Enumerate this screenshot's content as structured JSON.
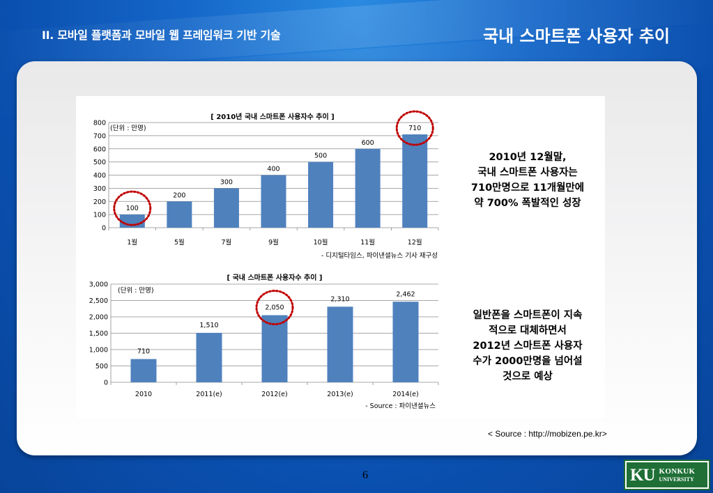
{
  "header": {
    "section_title": "II. 모바일 플랫폼과 모바일 웹 프레임워크 기반 기술",
    "slide_title": "국내 스마트폰 사용자 추이"
  },
  "chart_data": [
    {
      "type": "bar",
      "title": "[ 2010년 국내 스마트폰 사용자수 추이 ]",
      "unit_label": "(단위 : 만명)",
      "categories": [
        "1월",
        "5월",
        "7월",
        "9월",
        "10월",
        "11월",
        "12월"
      ],
      "values": [
        100,
        200,
        300,
        400,
        500,
        600,
        710
      ],
      "value_labels": [
        "100",
        "200",
        "300",
        "400",
        "500",
        "600",
        "710"
      ],
      "ylim": [
        0,
        800
      ],
      "yticks": [
        0,
        100,
        200,
        300,
        400,
        500,
        600,
        700,
        800
      ],
      "ytick_labels": [
        "0",
        "100",
        "200",
        "300",
        "400",
        "500",
        "600",
        "700",
        "800"
      ],
      "highlighted": [
        "1월",
        "12월"
      ],
      "source": "- 디지털타임스, 파이낸셜뉴스 기사 재구성",
      "grid": true,
      "color": "#4f81bd",
      "highlight_color": "#c00000"
    },
    {
      "type": "bar",
      "title": "[ 국내 스마트폰 사용자수 추이 ]",
      "unit_label": "(단위 : 만명)",
      "categories": [
        "2010",
        "2011(e)",
        "2012(e)",
        "2013(e)",
        "2014(e)"
      ],
      "values": [
        710,
        1510,
        2050,
        2310,
        2462
      ],
      "value_labels": [
        "710",
        "1,510",
        "2,050",
        "2,310",
        "2,462"
      ],
      "ylim": [
        0,
        3000
      ],
      "yticks": [
        0,
        500,
        1000,
        1500,
        2000,
        2500,
        3000
      ],
      "ytick_labels": [
        "0",
        "500",
        "1,000",
        "1,500",
        "2,000",
        "2,500",
        "3,000"
      ],
      "highlighted": [
        "2012(e)"
      ],
      "source": "- Source : 파이낸셜뉴스",
      "grid": true,
      "color": "#4f81bd",
      "highlight_color": "#c00000"
    }
  ],
  "notes": {
    "note1": [
      "2010년 12월말,",
      "국내 스마트폰 사용자는",
      "710만명으로 11개월만에",
      "약 700% 폭발적인 성장"
    ],
    "note2": [
      "일반폰을 스마트폰이 지속",
      "적으로 대체하면서",
      "2012년 스마트폰 사용자",
      "수가 2000만명을 넘어설",
      "것으로 예상"
    ]
  },
  "footer": {
    "source": "< Source : http://mobizen.pe.kr>",
    "page_number": "6",
    "logo_initials": "KU",
    "logo_name": "KONKUK",
    "logo_sub": "UNIVERSITY"
  }
}
